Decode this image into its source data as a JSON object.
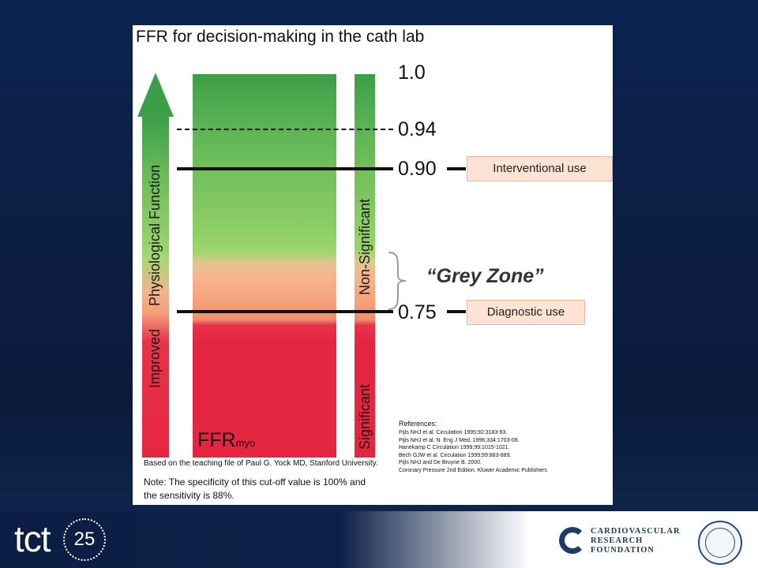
{
  "slide": {
    "title": "FFR for decision-making in the cath lab",
    "scale_labels": {
      "v100": "1.0",
      "v094": "0.94",
      "v090": "0.90",
      "v075": "0.75"
    },
    "arrow_label": {
      "part1": "Improved",
      "part2": "Physiological Function"
    },
    "side_labels": {
      "upper": "Non-Significant",
      "lower": "Significant"
    },
    "boxes": {
      "interventional": "Interventional use",
      "diagnostic": "Diagnostic use"
    },
    "grey_zone": "“Grey Zone”",
    "bar_label": {
      "main": "FFR",
      "sub": "myo"
    },
    "credit": "Based on the teaching file of Paul G. Yock MD, Stanford University.",
    "note": {
      "line1": "Note: The specificity of this cut-off value is 100% and",
      "line2": "the sensitivity is 88%."
    },
    "references": {
      "heading": "References:",
      "items": [
        "Pijls NHJ et al. Circulation 1995;92:3183-93.",
        "Pijls NHJ et al. N. Eng J Med. 1996;334:1703-08.",
        "Hanekamp C Circulation 1999;99:1015-1021.",
        "Bech GJW et al. Circulation 1999;99:883-889.",
        "Pijls NHJ and De Bruyne B. 2000.",
        "Coronary Pressure 2nd Edition. Kluwer Academic Publishers"
      ]
    }
  },
  "footer": {
    "tct_text": "tct",
    "tct_number": "25",
    "crf": {
      "line1": "CARDIOVASCULAR",
      "line2": "RESEARCH",
      "line3": "FOUNDATION"
    }
  },
  "colors": {
    "green": "#3c9e48",
    "light_green": "#9ad66c",
    "peach": "#f6b790",
    "red": "#e52640",
    "box_fill": "#fde3d3",
    "background_navy": "#0d1f45"
  }
}
